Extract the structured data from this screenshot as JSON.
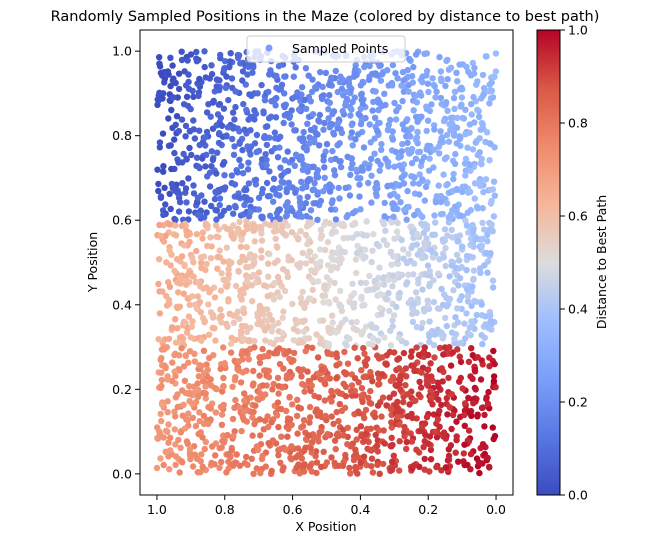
{
  "chart_data": {
    "type": "scatter",
    "title": "Randomly Sampled Positions in the Maze (colored by distance to best path)",
    "xlabel": "X Position",
    "ylabel": "Y Position",
    "xlim": [
      1.05,
      -0.05
    ],
    "ylim": [
      -0.05,
      1.05
    ],
    "x_inverted": true,
    "xticks": [
      1.0,
      0.8,
      0.6,
      0.4,
      0.2,
      0.0
    ],
    "xtick_labels": [
      "1.0",
      "0.8",
      "0.6",
      "0.4",
      "0.2",
      "0.0"
    ],
    "yticks": [
      0.0,
      0.2,
      0.4,
      0.6,
      0.8,
      1.0
    ],
    "ytick_labels": [
      "0.0",
      "0.2",
      "0.4",
      "0.6",
      "0.8",
      "1.0"
    ],
    "grid": false,
    "legend": {
      "placement": "top-center",
      "entries": [
        "Sampled Points"
      ]
    },
    "colorbar": {
      "label": "Distance to Best Path",
      "colormap": "coolwarm",
      "range": [
        0.0,
        1.0
      ],
      "ticks": [
        0.0,
        0.2,
        0.4,
        0.6,
        0.8,
        1.0
      ],
      "tick_labels": [
        "0.0",
        "0.2",
        "0.4",
        "0.6",
        "0.8",
        "1.0"
      ]
    },
    "series": [
      {
        "name": "Sampled Points",
        "count": 3000,
        "x_range": [
          0.0,
          1.0
        ],
        "regions": [
          {
            "y_range": [
              0.6,
              1.0
            ],
            "distance_at_x1": 0.02,
            "distance_at_x0": 0.38
          },
          {
            "y_range": [
              0.3,
              0.6
            ],
            "distance_at_x1": 0.66,
            "distance_at_x0": 0.38
          },
          {
            "y_range": [
              0.0,
              0.3
            ],
            "distance_at_x1": 0.7,
            "distance_at_x0": 0.98
          }
        ]
      }
    ]
  }
}
